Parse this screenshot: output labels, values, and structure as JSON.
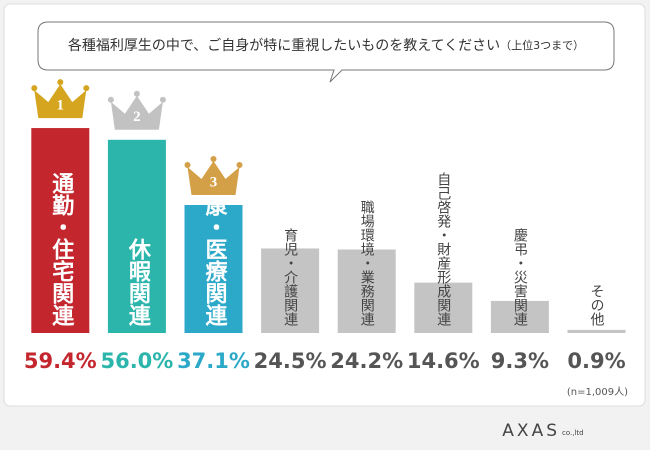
{
  "chart_data": {
    "type": "bar",
    "title": "各種福利厚生の中で、ご自身が特に重視したいものを教えてください",
    "title_note": "（上位3つまで）",
    "categories": [
      "通勤・住宅関連",
      "休暇関連",
      "健康・医療関連",
      "育児・介護関連",
      "職場環境・業務関連",
      "自己啓発・財産形成関連",
      "慶弔・災害関連",
      "その他"
    ],
    "values": [
      59.4,
      56.0,
      37.1,
      24.5,
      24.2,
      14.6,
      9.3,
      0.9
    ],
    "value_labels": [
      "59.4%",
      "56.0%",
      "37.1%",
      "24.5%",
      "24.2%",
      "14.6%",
      "9.3%",
      "0.9%"
    ],
    "colors": [
      "#c4262e",
      "#2bb5ab",
      "#2ca8c8",
      "#c4c4c4",
      "#c4c4c4",
      "#c4c4c4",
      "#c4c4c4",
      "#c4c4c4"
    ],
    "value_label_colors": [
      "#c4262e",
      "#2bb5ab",
      "#2ca8c8",
      "#555555",
      "#555555",
      "#555555",
      "#555555",
      "#555555"
    ],
    "category_label_colors": [
      "#ffffff",
      "#ffffff",
      "#ffffff",
      "#444444",
      "#444444",
      "#444444",
      "#444444",
      "#444444"
    ],
    "ranks": [
      {
        "label": "1",
        "color": "#d6a51f"
      },
      {
        "label": "2",
        "color": "#c2c2c2"
      },
      {
        "label": "3",
        "color": "#d4a047"
      }
    ],
    "note": "(n=1,009人)"
  },
  "footer": {
    "logo": "AXAS",
    "logo_suffix": "co.,ltd"
  }
}
